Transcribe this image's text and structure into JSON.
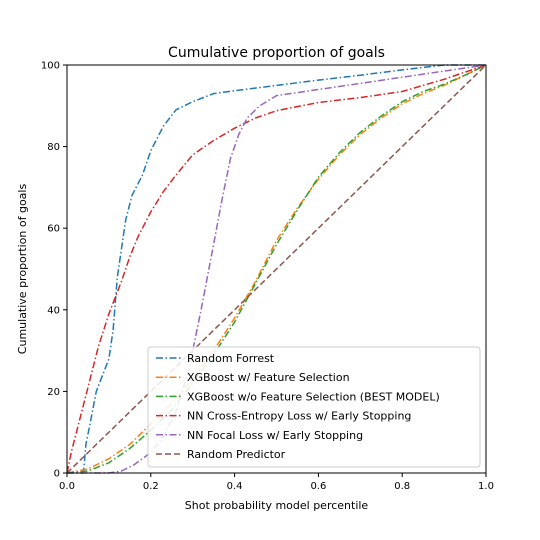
{
  "chart_data": {
    "type": "line",
    "title": "Cumulative proportion of goals",
    "xlabel": "Shot probability model percentile",
    "ylabel": "Cumulative proportion of goals",
    "xlim": [
      0.0,
      1.0
    ],
    "ylim": [
      0,
      100
    ],
    "x_ticks": [
      "0.0",
      "0.2",
      "0.4",
      "0.6",
      "0.8",
      "1.0"
    ],
    "y_ticks": [
      "0",
      "20",
      "40",
      "60",
      "80",
      "100"
    ],
    "grid": false,
    "legend_position": "lower-right",
    "series": [
      {
        "name": "Random Forrest",
        "color": "#1f77b4",
        "style": "dashdot",
        "points": [
          [
            0.0,
            0
          ],
          [
            0.035,
            0
          ],
          [
            0.04,
            1
          ],
          [
            0.045,
            7
          ],
          [
            0.055,
            12
          ],
          [
            0.07,
            20
          ],
          [
            0.085,
            24
          ],
          [
            0.1,
            28
          ],
          [
            0.11,
            35
          ],
          [
            0.12,
            48
          ],
          [
            0.13,
            55
          ],
          [
            0.14,
            62
          ],
          [
            0.155,
            68
          ],
          [
            0.18,
            73
          ],
          [
            0.2,
            79
          ],
          [
            0.23,
            85
          ],
          [
            0.26,
            89
          ],
          [
            0.3,
            91
          ],
          [
            0.35,
            93
          ],
          [
            0.4,
            93.7
          ],
          [
            0.5,
            95
          ],
          [
            0.6,
            96.3
          ],
          [
            0.7,
            97.5
          ],
          [
            0.8,
            98.8
          ],
          [
            0.9,
            100
          ],
          [
            1.0,
            100
          ]
        ]
      },
      {
        "name": "XGBoost w/ Feature Selection",
        "color": "#ff7f0e",
        "style": "dashdot",
        "points": [
          [
            0.0,
            0
          ],
          [
            0.05,
            1
          ],
          [
            0.1,
            3.5
          ],
          [
            0.15,
            7
          ],
          [
            0.2,
            12
          ],
          [
            0.25,
            17
          ],
          [
            0.3,
            23
          ],
          [
            0.35,
            30
          ],
          [
            0.4,
            38
          ],
          [
            0.45,
            47
          ],
          [
            0.5,
            57
          ],
          [
            0.55,
            65
          ],
          [
            0.6,
            72
          ],
          [
            0.65,
            78
          ],
          [
            0.7,
            83
          ],
          [
            0.75,
            87
          ],
          [
            0.8,
            90.5
          ],
          [
            0.85,
            93
          ],
          [
            0.9,
            95
          ],
          [
            0.95,
            97.5
          ],
          [
            1.0,
            100
          ]
        ]
      },
      {
        "name": "XGBoost w/o Feature Selection (BEST MODEL)",
        "color": "#2ca02c",
        "style": "dashdot",
        "points": [
          [
            0.0,
            0
          ],
          [
            0.05,
            0.5
          ],
          [
            0.1,
            2.5
          ],
          [
            0.15,
            6
          ],
          [
            0.2,
            10.5
          ],
          [
            0.25,
            15.5
          ],
          [
            0.3,
            22
          ],
          [
            0.35,
            29
          ],
          [
            0.4,
            37
          ],
          [
            0.45,
            46.5
          ],
          [
            0.5,
            56
          ],
          [
            0.55,
            64.5
          ],
          [
            0.6,
            72.5
          ],
          [
            0.65,
            78.5
          ],
          [
            0.7,
            83.5
          ],
          [
            0.75,
            87.5
          ],
          [
            0.8,
            91
          ],
          [
            0.85,
            93.5
          ],
          [
            0.9,
            95.3
          ],
          [
            0.95,
            97.5
          ],
          [
            1.0,
            100
          ]
        ]
      },
      {
        "name": "NN Cross-Entropy Loss w/ Early Stopping",
        "color": "#d62728",
        "style": "dashdot",
        "points": [
          [
            0.0,
            0
          ],
          [
            0.01,
            5
          ],
          [
            0.03,
            13
          ],
          [
            0.05,
            21
          ],
          [
            0.075,
            31
          ],
          [
            0.1,
            39
          ],
          [
            0.13,
            47
          ],
          [
            0.15,
            53
          ],
          [
            0.17,
            58
          ],
          [
            0.2,
            64
          ],
          [
            0.23,
            69
          ],
          [
            0.26,
            73
          ],
          [
            0.3,
            78
          ],
          [
            0.35,
            81.5
          ],
          [
            0.4,
            84.5
          ],
          [
            0.45,
            87
          ],
          [
            0.5,
            88.8
          ],
          [
            0.6,
            90.8
          ],
          [
            0.7,
            92
          ],
          [
            0.8,
            93.5
          ],
          [
            0.9,
            96.5
          ],
          [
            1.0,
            100
          ]
        ]
      },
      {
        "name": "NN Focal Loss w/ Early Stopping",
        "color": "#9467bd",
        "style": "dashdot",
        "points": [
          [
            0.0,
            0
          ],
          [
            0.1,
            0
          ],
          [
            0.13,
            0.5
          ],
          [
            0.16,
            2
          ],
          [
            0.2,
            5
          ],
          [
            0.23,
            9
          ],
          [
            0.26,
            15
          ],
          [
            0.29,
            25
          ],
          [
            0.32,
            40
          ],
          [
            0.35,
            56
          ],
          [
            0.37,
            67
          ],
          [
            0.39,
            77
          ],
          [
            0.41,
            83
          ],
          [
            0.43,
            87
          ],
          [
            0.46,
            90
          ],
          [
            0.5,
            92.5
          ],
          [
            0.6,
            94
          ],
          [
            0.7,
            95.5
          ],
          [
            0.8,
            97
          ],
          [
            0.9,
            98.5
          ],
          [
            1.0,
            100
          ]
        ]
      },
      {
        "name": "Random Predictor",
        "color": "#8c564b",
        "style": "dashed",
        "points": [
          [
            0.0,
            0
          ],
          [
            1.0,
            100
          ]
        ]
      }
    ]
  }
}
